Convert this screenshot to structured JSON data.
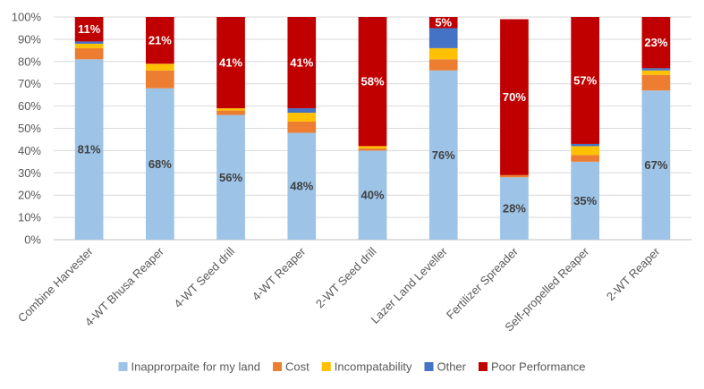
{
  "chart_data": {
    "type": "bar",
    "stacked": true,
    "title": "",
    "xlabel": "",
    "ylabel": "",
    "ylim": [
      0,
      100
    ],
    "y_tick_labels": [
      "0%",
      "10%",
      "20%",
      "30%",
      "40%",
      "50%",
      "60%",
      "70%",
      "80%",
      "90%",
      "100%"
    ],
    "grid": true,
    "legend_position": "bottom",
    "categories": [
      "Combine Harvester",
      "4-WT Bhusa Reaper",
      "4-WT Seed drill",
      "4-WT Reaper",
      "2-WT Seed drill",
      "Lazer Land Leveller",
      "Fertilizer Spreader",
      "Self-propelled Reaper",
      "2-WT Reaper"
    ],
    "series": [
      {
        "name": "Inapprorpaite for my land",
        "color": "#9DC3E6",
        "values": [
          81,
          68,
          56,
          48,
          40,
          76,
          28,
          35,
          67
        ],
        "labels": [
          "81%",
          "68%",
          "56%",
          "48%",
          "40%",
          "76%",
          "28%",
          "35%",
          "67%"
        ],
        "label_color": "#404040"
      },
      {
        "name": "Cost",
        "color": "#ED7D31",
        "values": [
          5,
          8,
          2,
          5,
          1,
          5,
          1,
          3,
          7
        ],
        "labels": [
          "",
          "",
          "",
          "",
          "",
          "",
          "",
          "",
          ""
        ],
        "label_color": "#404040"
      },
      {
        "name": "Incompatability",
        "color": "#FFC000",
        "values": [
          2,
          3,
          1,
          4,
          1,
          5,
          0,
          4,
          2
        ],
        "labels": [
          "",
          "",
          "",
          "",
          "",
          "",
          "",
          "",
          ""
        ],
        "label_color": "#404040"
      },
      {
        "name": "Other",
        "color": "#4472C4",
        "values": [
          1,
          0,
          0,
          2,
          0,
          9,
          0,
          1,
          1
        ],
        "labels": [
          "",
          "",
          "",
          "",
          "",
          "",
          "",
          "",
          ""
        ],
        "label_color": "#404040"
      },
      {
        "name": "Poor Performance",
        "color": "#C00000",
        "values": [
          11,
          21,
          41,
          41,
          58,
          5,
          70,
          57,
          23
        ],
        "labels": [
          "11%",
          "21%",
          "41%",
          "41%",
          "58%",
          "5%",
          "70%",
          "57%",
          "23%"
        ],
        "label_color": "#ffffff"
      }
    ]
  }
}
